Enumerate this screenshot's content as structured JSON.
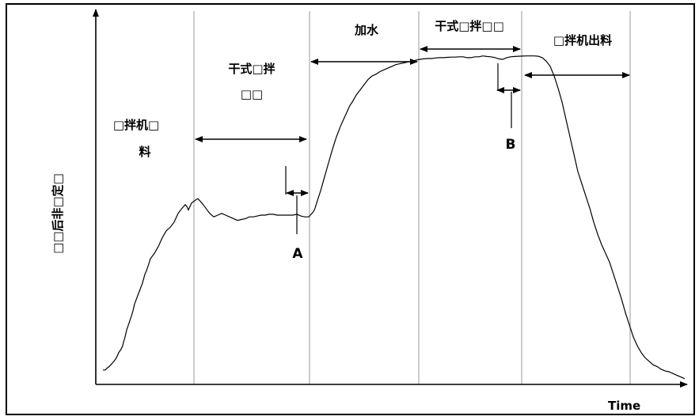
{
  "chart_data": {
    "type": "line",
    "title": "",
    "xlabel": "Time",
    "ylabel": "□□后非□定□",
    "phases": [
      {
        "label_lines": [
          "□拌机□",
          "料"
        ]
      },
      {
        "label_lines": [
          "干式□拌",
          "□□"
        ]
      },
      {
        "label_lines": [
          "加水"
        ]
      },
      {
        "label_lines": [
          "干式□拌□□"
        ]
      },
      {
        "label_lines": [
          "□拌机出料"
        ]
      }
    ],
    "markers": [
      {
        "label": "A"
      },
      {
        "label": "B"
      }
    ],
    "x_unit": "relative time (no scale printed)",
    "y_unit": "relative level (no scale printed)",
    "series": [
      {
        "x": [
          0,
          3,
          5,
          8,
          10,
          14,
          17,
          20,
          23,
          25,
          26,
          28,
          30,
          33,
          36,
          38,
          40,
          45,
          50,
          53,
          55,
          58,
          60,
          65,
          70,
          75,
          80,
          85,
          90,
          95,
          100,
          102,
          104,
          106,
          108,
          110,
          112,
          115,
          118,
          120,
          125,
          130,
          135,
          140,
          145,
          150,
          155,
          160,
          165,
          170,
          175,
          180,
          185,
          190,
          195,
          200,
          205,
          210,
          215,
          220,
          225,
          230,
          235,
          240,
          245,
          250,
          255,
          258,
          260,
          262,
          264,
          266,
          268,
          270,
          275,
          280,
          285,
          290,
          295,
          300,
          305,
          310,
          312,
          315,
          320,
          325,
          330,
          335,
          340,
          345,
          350,
          355,
          360,
          365,
          370,
          375,
          380,
          385,
          390,
          395,
          400,
          405,
          410,
          415,
          420,
          425,
          430,
          435,
          440,
          445,
          450,
          455,
          460,
          465,
          470,
          475,
          480,
          485,
          490,
          495,
          500,
          505,
          510,
          515,
          520,
          525,
          530,
          535,
          540,
          545,
          550,
          555,
          560,
          565,
          570,
          575,
          580,
          585,
          590,
          595,
          600,
          605,
          610,
          615,
          620,
          625,
          630,
          635,
          640,
          645,
          650,
          655,
          660,
          665,
          670,
          675,
          680,
          685,
          690,
          695,
          700,
          705,
          710,
          715,
          720,
          725,
          730,
          735
        ],
        "y": [
          1,
          1,
          2,
          3,
          4,
          6,
          8,
          11,
          13,
          15,
          17,
          20,
          24,
          28,
          32,
          35,
          39,
          45,
          51,
          56,
          58,
          62,
          65,
          68,
          72,
          77,
          81,
          83,
          86,
          91,
          94,
          95,
          96,
          95,
          93,
          95,
          97,
          98,
          99,
          99.5,
          97,
          94,
          91,
          89,
          90,
          91,
          90,
          89,
          88,
          87,
          87.5,
          88,
          89,
          89,
          89.5,
          90,
          90,
          90.5,
          90.5,
          90,
          90,
          90,
          90,
          90,
          90.5,
          89.5,
          89,
          89,
          89,
          90,
          91,
          92,
          94,
          97,
          104,
          112,
          120,
          128,
          135,
          141,
          146,
          151,
          153,
          155,
          159,
          162,
          165,
          168,
          170,
          171,
          172.5,
          173.5,
          174.5,
          175.5,
          176.5,
          177,
          177.5,
          178,
          178.5,
          179,
          179.5,
          179.8,
          180,
          180,
          180.3,
          180.5,
          180.5,
          180.7,
          180.8,
          180.8,
          181,
          181,
          180.5,
          180.5,
          181,
          181,
          181.5,
          181.2,
          181,
          180.6,
          179.8,
          179.5,
          180.5,
          181,
          181.2,
          181.3,
          181.4,
          181.5,
          181.5,
          181.5,
          181.3,
          180.5,
          178.5,
          175.5,
          170,
          163,
          155,
          145,
          135,
          125,
          115,
          108,
          101,
          94,
          86,
          79,
          73,
          68,
          63,
          56,
          49,
          42,
          34,
          27,
          20,
          15,
          11,
          8,
          6,
          4,
          3,
          1.5,
          0.5,
          0,
          -1,
          -2,
          -3,
          -4
        ],
        "color": "#000000"
      }
    ]
  }
}
